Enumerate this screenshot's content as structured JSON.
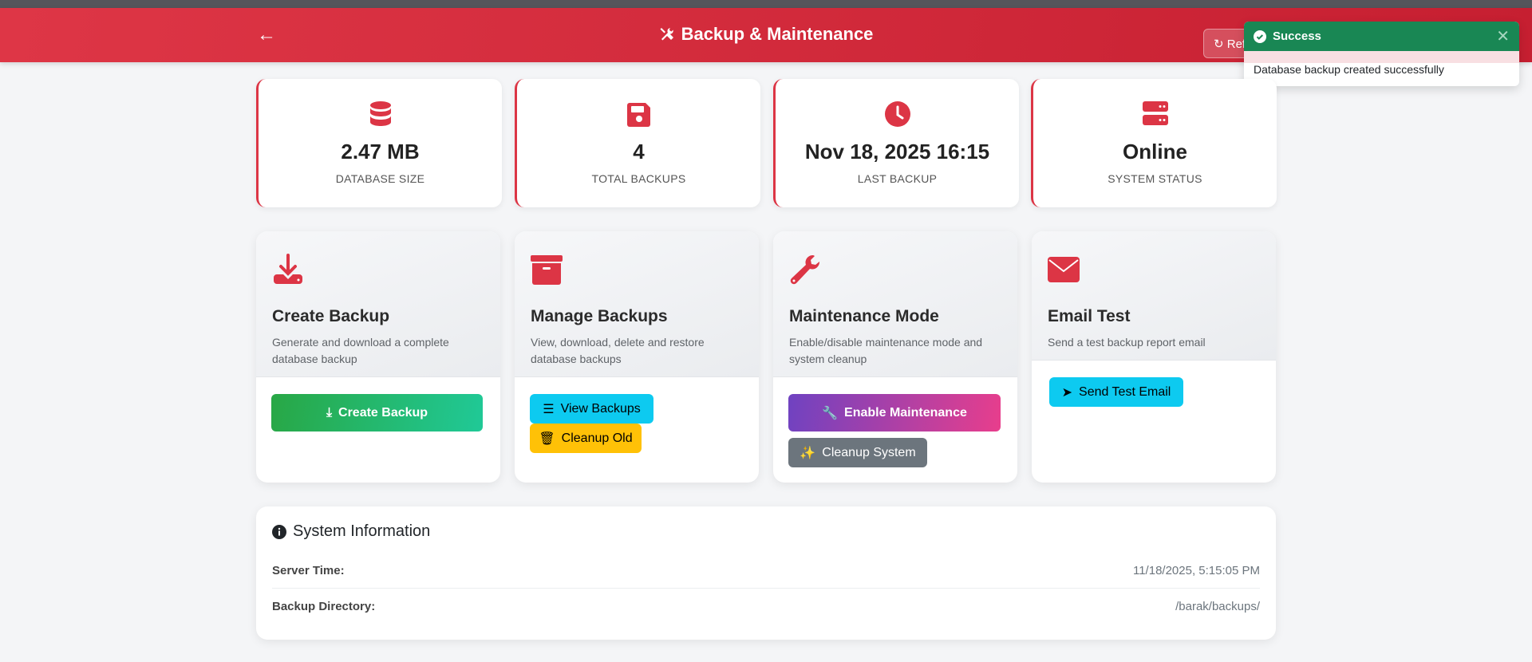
{
  "header": {
    "title": "Backup & Maintenance",
    "refresh_label": "Refresh",
    "back_icon": "arrow-left-icon",
    "title_icon": "tools-icon"
  },
  "toast": {
    "title": "Success",
    "message": "Database backup created successfully",
    "color": "#198754"
  },
  "stats": [
    {
      "icon": "database-icon",
      "value": "2.47 MB",
      "label": "DATABASE SIZE"
    },
    {
      "icon": "floppy-disk-icon",
      "value": "4",
      "label": "TOTAL BACKUPS"
    },
    {
      "icon": "clock-icon",
      "value": "Nov 18, 2025 16:15",
      "label": "LAST BACKUP"
    },
    {
      "icon": "server-icon",
      "value": "Online",
      "label": "SYSTEM STATUS"
    }
  ],
  "cards": [
    {
      "icon": "download-icon",
      "title": "Create Backup",
      "desc": "Generate and download a complete database backup",
      "buttons": [
        "Create Backup"
      ]
    },
    {
      "icon": "archive-icon",
      "title": "Manage Backups",
      "desc": "View, download, delete and restore database backups",
      "buttons": [
        "View Backups",
        "Cleanup Old"
      ]
    },
    {
      "icon": "wrench-icon",
      "title": "Maintenance Mode",
      "desc": "Enable/disable maintenance mode and system cleanup",
      "buttons": [
        "Enable Maintenance",
        "Cleanup System"
      ]
    },
    {
      "icon": "envelope-icon",
      "title": "Email Test",
      "desc": "Send a test backup report email",
      "buttons": [
        "Send Test Email"
      ]
    }
  ],
  "system_info": {
    "title": "System Information",
    "rows": [
      {
        "label": "Server Time:",
        "value": "11/18/2025, 5:15:05 PM"
      },
      {
        "label": "Backup Directory:",
        "value": "/barak/backups/"
      }
    ]
  },
  "colors": {
    "accent": "#dc3545",
    "success": "#198754",
    "info": "#0dcaf0",
    "warning": "#ffc107",
    "secondary": "#6c757d"
  }
}
